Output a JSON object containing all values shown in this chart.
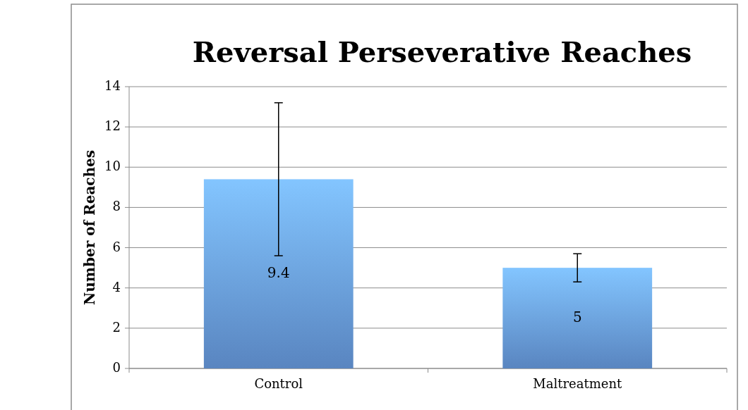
{
  "chart_data": {
    "type": "bar",
    "title": "Reversal Perseverative Reaches",
    "ylabel": "Number of Reaches",
    "categories": [
      "Control",
      "Maltreatment"
    ],
    "values": [
      9.4,
      5
    ],
    "errors": [
      3.8,
      0.7
    ],
    "color": "#6a9fe6",
    "ylim": [
      0,
      14
    ],
    "yticks": [
      0,
      2,
      4,
      6,
      8,
      10,
      12,
      14
    ],
    "grid": "y",
    "data_labels": true
  }
}
